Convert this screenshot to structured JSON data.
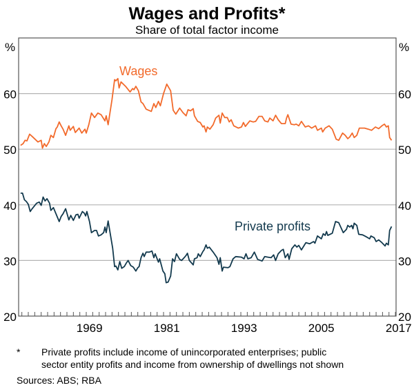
{
  "chart_data": {
    "type": "line",
    "title": "Wages and Profits*",
    "subtitle": "Share of total factor income",
    "ylabel_left": "%",
    "ylabel_right": "%",
    "ylim": [
      20,
      70
    ],
    "yticks": [
      20,
      30,
      40,
      50,
      60
    ],
    "xlim": [
      1958.5,
      2017.1
    ],
    "xticks": [
      1969,
      1981,
      1993,
      2005,
      2017
    ],
    "grid": true,
    "colors": {
      "wages": "#f26a2b",
      "profits": "#12394d",
      "grid": "#b3b3b3"
    },
    "series": [
      {
        "name": "Wages",
        "key": "wages",
        "x": [
          1958.8,
          1959.2,
          1959.5,
          1959.8,
          1960.2,
          1960.6,
          1961.5,
          1962.0,
          1962.2,
          1962.5,
          1962.8,
          1963.2,
          1963.5,
          1963.9,
          1964.3,
          1964.5,
          1964.8,
          1965.1,
          1965.4,
          1965.8,
          1966.3,
          1966.5,
          1967.0,
          1967.3,
          1967.9,
          1968.3,
          1968.8,
          1969.0,
          1969.4,
          1969.8,
          1970.3,
          1970.8,
          1971.3,
          1971.9,
          1972.1,
          1972.4,
          1973.0,
          1973.4,
          1973.6,
          1973.9,
          1974.1,
          1974.4,
          1975.1,
          1975.8,
          1976.2,
          1976.4,
          1976.7,
          1977.1,
          1977.5,
          1977.8,
          1978.3,
          1979.1,
          1979.5,
          1979.8,
          1980.2,
          1980.5,
          1981.0,
          1981.5,
          1982.1,
          1982.5,
          1982.9,
          1983.5,
          1984.0,
          1984.5,
          1984.8,
          1985.2,
          1985.6,
          1985.8,
          1986.3,
          1986.7,
          1987.1,
          1987.3,
          1987.6,
          1987.8,
          1988.2,
          1988.7,
          1989.1,
          1989.6,
          1989.8,
          1990.1,
          1990.5,
          1990.9,
          1991.2,
          1991.5,
          1991.9,
          1992.6,
          1993.1,
          1993.4,
          1993.7,
          1994.4,
          1994.9,
          1995.3,
          1995.8,
          1996.3,
          1996.7,
          1997.2,
          1997.5,
          1998.0,
          1998.4,
          1998.8,
          1999.3,
          1999.9,
          2000.1,
          2000.3,
          2000.8,
          2001.3,
          2001.6,
          2002.0,
          2002.4,
          2003.0,
          2003.5,
          2004.0,
          2004.6,
          2004.9,
          2005.5,
          2005.7,
          2006.1,
          2006.7,
          2007.2,
          2007.8,
          2008.2,
          2008.8,
          2009.2,
          2009.6,
          2009.9,
          2010.3,
          2010.6,
          2011.0,
          2011.4,
          2011.9,
          2012.2,
          2012.8,
          2013.3,
          2013.9,
          2014.4,
          2014.9,
          2015.3,
          2015.6,
          2015.9,
          2016.1,
          2016.4
        ],
        "y": [
          50.7,
          51.0,
          51.6,
          51.5,
          52.7,
          52.3,
          51.3,
          51.6,
          50.2,
          51.0,
          50.5,
          51.3,
          52.5,
          52.1,
          53.7,
          54.0,
          54.9,
          54.2,
          53.6,
          52.5,
          54.2,
          53.4,
          54.1,
          53.0,
          53.8,
          52.9,
          53.6,
          52.9,
          54.4,
          56.5,
          55.7,
          56.5,
          56.2,
          55.1,
          56.0,
          54.4,
          58.9,
          62.5,
          62.3,
          62.7,
          61.0,
          62.1,
          61.3,
          60.3,
          60.9,
          60.7,
          61.3,
          60.5,
          58.5,
          58.2,
          57.2,
          56.8,
          58.2,
          57.5,
          58.6,
          57.8,
          60.0,
          61.7,
          60.5,
          57.0,
          56.3,
          57.4,
          56.6,
          56.0,
          57.1,
          56.9,
          57.3,
          56.0,
          55.0,
          54.8,
          54.0,
          54.2,
          53.1,
          54.0,
          53.6,
          54.4,
          55.6,
          56.1,
          54.7,
          56.5,
          55.7,
          55.7,
          54.9,
          55.3,
          54.2,
          53.8,
          54.0,
          54.8,
          54.1,
          55.1,
          54.9,
          55.0,
          55.9,
          55.9,
          55.1,
          54.9,
          55.6,
          55.1,
          56.1,
          55.3,
          54.6,
          54.6,
          55.6,
          56.2,
          54.5,
          54.4,
          54.5,
          54.2,
          55.0,
          54.0,
          54.2,
          53.8,
          54.2,
          53.4,
          53.8,
          53.1,
          53.8,
          54.2,
          53.6,
          51.8,
          51.6,
          52.9,
          52.5,
          51.9,
          52.2,
          52.9,
          52.1,
          52.5,
          53.8,
          53.8,
          53.8,
          53.6,
          53.4,
          54.0,
          53.7,
          54.2,
          54.5,
          54.0,
          54.2,
          52.1,
          51.6
        ]
      },
      {
        "name": "Private profits",
        "key": "profits",
        "x": [
          1958.8,
          1959.1,
          1959.4,
          1959.7,
          1960.0,
          1960.3,
          1960.6,
          1961.3,
          1961.7,
          1962.0,
          1962.3,
          1962.6,
          1962.9,
          1963.3,
          1963.5,
          1963.9,
          1964.4,
          1964.8,
          1965.1,
          1965.4,
          1965.8,
          1966.3,
          1966.6,
          1967.0,
          1967.4,
          1967.7,
          1967.9,
          1968.4,
          1968.7,
          1968.9,
          1969.1,
          1969.5,
          1969.8,
          1970.3,
          1970.6,
          1970.9,
          1971.3,
          1971.7,
          1971.9,
          1972.1,
          1972.4,
          1973.1,
          1973.4,
          1973.6,
          1973.9,
          1974.2,
          1974.5,
          1974.9,
          1975.2,
          1975.5,
          1975.9,
          1976.3,
          1976.7,
          1977.0,
          1977.2,
          1977.5,
          1977.8,
          1978.0,
          1978.3,
          1978.8,
          1979.2,
          1979.5,
          1979.7,
          1980.2,
          1980.4,
          1980.9,
          1981.2,
          1981.4,
          1981.7,
          1982.1,
          1982.4,
          1982.7,
          1983.0,
          1983.5,
          1983.8,
          1984.2,
          1984.5,
          1984.7,
          1985.0,
          1985.6,
          1985.8,
          1986.2,
          1986.4,
          1986.7,
          1987.1,
          1987.3,
          1987.6,
          1987.8,
          1988.1,
          1988.7,
          1989.3,
          1989.6,
          1989.8,
          1990.1,
          1990.3,
          1991.0,
          1991.3,
          1991.8,
          1992.2,
          1993.1,
          1993.5,
          1993.8,
          1994.1,
          1994.6,
          1995.1,
          1995.6,
          1996.3,
          1996.7,
          1997.2,
          1997.7,
          1998.1,
          1998.4,
          1998.8,
          1999.3,
          1999.6,
          1999.9,
          2000.3,
          2000.5,
          2000.9,
          2001.4,
          2001.7,
          2002.0,
          2002.4,
          2003.1,
          2003.7,
          2004.3,
          2004.5,
          2004.9,
          2005.5,
          2005.8,
          2006.1,
          2006.3,
          2006.5,
          2007.2,
          2007.7,
          2008.2,
          2008.9,
          2009.4,
          2009.6,
          2009.9,
          2010.2,
          2010.4,
          2010.6,
          2011.0,
          2011.3,
          2011.9,
          2012.4,
          2013.0,
          2013.2,
          2013.7,
          2014.0,
          2014.4,
          2014.9,
          2015.4,
          2015.6,
          2015.9,
          2016.1,
          2016.4
        ],
        "y": [
          42.1,
          42.1,
          40.9,
          40.6,
          40.1,
          38.8,
          39.3,
          40.3,
          40.5,
          39.9,
          41.4,
          40.7,
          41.1,
          40.3,
          39.0,
          39.5,
          38.1,
          37.0,
          37.9,
          38.4,
          39.3,
          37.3,
          38.1,
          37.2,
          38.2,
          38.3,
          37.6,
          38.8,
          38.5,
          38.0,
          38.8,
          37.0,
          35.0,
          35.4,
          35.4,
          34.4,
          34.6,
          35.0,
          36.0,
          35.0,
          37.1,
          32.2,
          28.9,
          29.0,
          28.3,
          29.8,
          28.6,
          28.9,
          29.5,
          30.0,
          29.1,
          28.8,
          28.1,
          28.7,
          28.9,
          30.5,
          31.3,
          30.7,
          31.5,
          31.5,
          31.7,
          30.5,
          31.2,
          29.7,
          30.3,
          28.1,
          27.6,
          26.0,
          26.1,
          27.2,
          30.3,
          29.8,
          31.2,
          30.2,
          30.0,
          30.5,
          30.9,
          31.3,
          30.0,
          29.2,
          30.3,
          30.5,
          31.2,
          30.7,
          31.6,
          31.9,
          32.8,
          32.2,
          32.4,
          31.5,
          30.5,
          29.3,
          30.5,
          28.1,
          28.8,
          28.7,
          28.9,
          30.3,
          30.7,
          30.6,
          30.3,
          31.2,
          30.3,
          30.5,
          31.5,
          30.2,
          29.9,
          30.7,
          30.6,
          30.5,
          31.0,
          30.0,
          31.2,
          31.8,
          32.0,
          30.5,
          31.2,
          30.2,
          32.1,
          32.8,
          32.4,
          32.7,
          31.9,
          33.2,
          33.0,
          33.4,
          33.1,
          34.4,
          33.9,
          34.8,
          34.5,
          35.2,
          34.5,
          34.9,
          37.0,
          36.8,
          35.0,
          35.6,
          36.3,
          36.0,
          36.3,
          35.7,
          36.7,
          36.3,
          34.7,
          34.6,
          34.3,
          33.9,
          34.4,
          34.1,
          33.4,
          33.7,
          33.2,
          32.6,
          33.1,
          32.8,
          35.4,
          36.1
        ]
      }
    ],
    "annotations": {
      "wages": "Wages",
      "profits": "Private profits"
    }
  },
  "footnote": {
    "marker": "*",
    "line1": "Private profits include income of unincorporated enterprises; public",
    "line2": "sector entity profits and income from ownership of dwellings not shown"
  },
  "sources": "Sources: ABS; RBA"
}
